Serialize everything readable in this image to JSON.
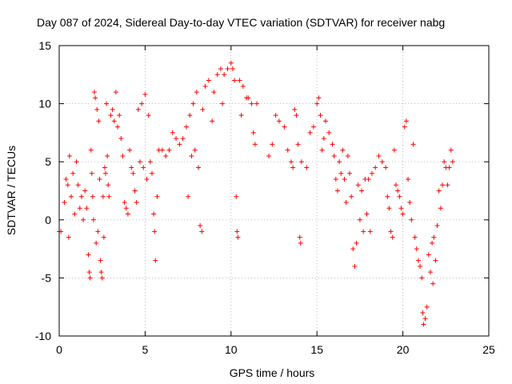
{
  "chart_data": {
    "type": "scatter",
    "title": "Day 087 of 2024, Sidereal Day-to-day VTEC variation (SDTVAR) for receiver nabg",
    "xlabel": "GPS time / hours",
    "ylabel": "SDTVAR / TECUs",
    "xlim": [
      0,
      25
    ],
    "ylim": [
      -10,
      15
    ],
    "xticks": [
      0,
      5,
      10,
      15,
      20,
      25
    ],
    "yticks": [
      -10,
      -5,
      0,
      5,
      10,
      15
    ],
    "xtick_labels": [
      "0",
      "5",
      "10",
      "15",
      "20",
      "25"
    ],
    "ytick_labels": [
      "-10",
      "-5",
      "0",
      "5",
      "10",
      "15"
    ],
    "grid": true,
    "marker": "+",
    "color": "#ff0000",
    "series": [
      {
        "name": "SDTVAR",
        "points": [
          [
            0.0,
            -1.0
          ],
          [
            0.1,
            -1.0
          ],
          [
            0.3,
            1.5
          ],
          [
            0.4,
            3.5
          ],
          [
            0.5,
            3.0
          ],
          [
            0.55,
            -1.5
          ],
          [
            0.6,
            5.5
          ],
          [
            0.7,
            2.0
          ],
          [
            0.8,
            4.0
          ],
          [
            0.9,
            0.5
          ],
          [
            1.0,
            5.0
          ],
          [
            1.1,
            3.0
          ],
          [
            1.2,
            1.0
          ],
          [
            1.3,
            2.0
          ],
          [
            1.4,
            0.0
          ],
          [
            1.5,
            2.5
          ],
          [
            1.6,
            1.0
          ],
          [
            1.7,
            -3.0
          ],
          [
            1.75,
            -4.5
          ],
          [
            1.8,
            -5.0
          ],
          [
            1.85,
            6.0
          ],
          [
            1.9,
            4.0
          ],
          [
            1.95,
            2.0
          ],
          [
            2.0,
            0.0
          ],
          [
            2.05,
            11.0
          ],
          [
            2.1,
            10.5
          ],
          [
            2.15,
            -2.0
          ],
          [
            2.2,
            9.5
          ],
          [
            2.25,
            -1.0
          ],
          [
            2.3,
            8.5
          ],
          [
            2.35,
            3.5
          ],
          [
            2.4,
            -3.5
          ],
          [
            2.45,
            -4.5
          ],
          [
            2.5,
            -5.0
          ],
          [
            2.55,
            2.0
          ],
          [
            2.6,
            -1.5
          ],
          [
            2.65,
            4.5
          ],
          [
            2.7,
            4.0
          ],
          [
            2.75,
            10.0
          ],
          [
            2.8,
            5.5
          ],
          [
            2.85,
            3.0
          ],
          [
            2.9,
            2.0
          ],
          [
            3.0,
            9.0
          ],
          [
            3.1,
            9.5
          ],
          [
            3.2,
            8.5
          ],
          [
            3.3,
            11.0
          ],
          [
            3.4,
            8.0
          ],
          [
            3.5,
            9.0
          ],
          [
            3.6,
            7.0
          ],
          [
            3.7,
            5.5
          ],
          [
            3.8,
            1.5
          ],
          [
            3.9,
            1.0
          ],
          [
            4.0,
            0.5
          ],
          [
            4.1,
            6.0
          ],
          [
            4.2,
            4.5
          ],
          [
            4.3,
            4.0
          ],
          [
            4.4,
            2.5
          ],
          [
            4.5,
            1.5
          ],
          [
            4.6,
            9.5
          ],
          [
            4.7,
            5.0
          ],
          [
            4.8,
            10.0
          ],
          [
            4.9,
            4.5
          ],
          [
            5.0,
            10.8
          ],
          [
            5.1,
            3.5
          ],
          [
            5.2,
            9.0
          ],
          [
            5.3,
            5.0
          ],
          [
            5.4,
            4.0
          ],
          [
            5.5,
            0.5
          ],
          [
            5.55,
            -1.0
          ],
          [
            5.6,
            -3.5
          ],
          [
            5.7,
            2.0
          ],
          [
            5.8,
            6.0
          ],
          [
            6.0,
            6.0
          ],
          [
            6.2,
            5.5
          ],
          [
            6.4,
            6.0
          ],
          [
            6.6,
            7.5
          ],
          [
            6.8,
            7.0
          ],
          [
            7.0,
            6.5
          ],
          [
            7.2,
            7.0
          ],
          [
            7.4,
            8.0
          ],
          [
            7.5,
            2.0
          ],
          [
            7.6,
            9.0
          ],
          [
            7.7,
            5.5
          ],
          [
            7.8,
            10.0
          ],
          [
            7.9,
            6.0
          ],
          [
            8.0,
            11.0
          ],
          [
            8.1,
            4.5
          ],
          [
            8.2,
            -0.5
          ],
          [
            8.3,
            -1.0
          ],
          [
            8.35,
            9.5
          ],
          [
            8.5,
            11.5
          ],
          [
            8.7,
            12.0
          ],
          [
            8.9,
            8.5
          ],
          [
            9.0,
            11.0
          ],
          [
            9.2,
            12.5
          ],
          [
            9.4,
            13.0
          ],
          [
            9.5,
            10.0
          ],
          [
            9.6,
            12.5
          ],
          [
            9.8,
            13.0
          ],
          [
            10.0,
            13.5
          ],
          [
            10.1,
            13.0
          ],
          [
            10.2,
            12.0
          ],
          [
            10.3,
            2.0
          ],
          [
            10.35,
            -1.0
          ],
          [
            10.4,
            -1.5
          ],
          [
            10.5,
            12.0
          ],
          [
            10.6,
            9.0
          ],
          [
            10.7,
            11.5
          ],
          [
            10.9,
            10.5
          ],
          [
            11.0,
            10.5
          ],
          [
            11.2,
            10.0
          ],
          [
            11.3,
            7.5
          ],
          [
            11.4,
            6.5
          ],
          [
            11.5,
            10.0
          ],
          [
            12.2,
            5.5
          ],
          [
            12.4,
            6.5
          ],
          [
            12.6,
            9.0
          ],
          [
            12.8,
            8.5
          ],
          [
            13.1,
            8.0
          ],
          [
            13.3,
            6.0
          ],
          [
            13.5,
            5.0
          ],
          [
            13.6,
            4.5
          ],
          [
            13.7,
            9.5
          ],
          [
            13.8,
            9.0
          ],
          [
            13.9,
            6.5
          ],
          [
            14.0,
            -1.5
          ],
          [
            14.05,
            -2.0
          ],
          [
            14.1,
            5.0
          ],
          [
            14.4,
            4.5
          ],
          [
            14.6,
            7.5
          ],
          [
            14.8,
            8.0
          ],
          [
            15.0,
            10.0
          ],
          [
            15.1,
            10.5
          ],
          [
            15.2,
            9.0
          ],
          [
            15.3,
            6.0
          ],
          [
            15.4,
            7.0
          ],
          [
            15.5,
            8.5
          ],
          [
            15.7,
            7.5
          ],
          [
            15.9,
            6.5
          ],
          [
            16.0,
            5.5
          ],
          [
            16.1,
            3.5
          ],
          [
            16.2,
            2.5
          ],
          [
            16.3,
            5.0
          ],
          [
            16.4,
            4.0
          ],
          [
            16.5,
            6.0
          ],
          [
            16.6,
            3.5
          ],
          [
            16.7,
            1.5
          ],
          [
            16.8,
            5.5
          ],
          [
            16.9,
            4.0
          ],
          [
            17.0,
            2.0
          ],
          [
            17.1,
            -2.5
          ],
          [
            17.2,
            -4.0
          ],
          [
            17.3,
            -2.0
          ],
          [
            17.4,
            3.0
          ],
          [
            17.5,
            0.0
          ],
          [
            17.6,
            2.5
          ],
          [
            17.7,
            -1.0
          ],
          [
            17.8,
            3.5
          ],
          [
            17.9,
            0.5
          ],
          [
            18.0,
            3.5
          ],
          [
            18.1,
            -1.0
          ],
          [
            18.2,
            4.0
          ],
          [
            18.4,
            4.5
          ],
          [
            18.6,
            5.5
          ],
          [
            18.8,
            5.0
          ],
          [
            19.0,
            4.5
          ],
          [
            19.1,
            2.0
          ],
          [
            19.2,
            1.0
          ],
          [
            19.3,
            -1.0
          ],
          [
            19.4,
            -1.5
          ],
          [
            19.5,
            6.0
          ],
          [
            19.6,
            3.0
          ],
          [
            19.7,
            2.5
          ],
          [
            19.8,
            2.0
          ],
          [
            19.9,
            1.0
          ],
          [
            20.0,
            0.5
          ],
          [
            20.1,
            8.0
          ],
          [
            20.2,
            8.5
          ],
          [
            20.3,
            3.5
          ],
          [
            20.4,
            1.5
          ],
          [
            20.5,
            0.0
          ],
          [
            20.6,
            6.5
          ],
          [
            20.7,
            -1.5
          ],
          [
            20.8,
            -2.5
          ],
          [
            20.9,
            -3.5
          ],
          [
            21.0,
            -4.0
          ],
          [
            21.1,
            -5.0
          ],
          [
            21.15,
            -8.0
          ],
          [
            21.2,
            -9.0
          ],
          [
            21.3,
            -8.5
          ],
          [
            21.4,
            -7.5
          ],
          [
            21.5,
            -3.0
          ],
          [
            21.6,
            -4.5
          ],
          [
            21.7,
            -2.0
          ],
          [
            21.75,
            -5.5
          ],
          [
            21.8,
            -1.5
          ],
          [
            21.9,
            -3.5
          ],
          [
            22.0,
            -0.5
          ],
          [
            22.1,
            2.5
          ],
          [
            22.2,
            1.0
          ],
          [
            22.3,
            3.0
          ],
          [
            22.4,
            5.0
          ],
          [
            22.5,
            4.5
          ],
          [
            22.6,
            3.0
          ],
          [
            22.7,
            4.5
          ],
          [
            22.8,
            6.0
          ],
          [
            22.9,
            5.0
          ]
        ]
      }
    ]
  }
}
